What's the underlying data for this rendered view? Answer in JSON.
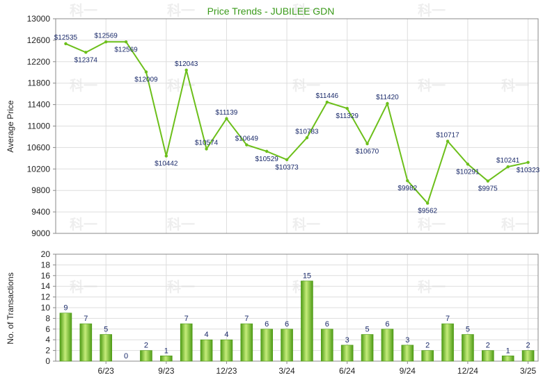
{
  "chart_data": [
    {
      "type": "line",
      "title": "Price Trends - JUBILEE GDN",
      "ylabel": "Average Price",
      "ylim": [
        9000,
        13000
      ],
      "yticks": [
        "9000",
        "9400",
        "9800",
        "10200",
        "10600",
        "11000",
        "11400",
        "11800",
        "12200",
        "12600",
        "13000"
      ],
      "grid": true,
      "series": [
        {
          "values": [
            12535,
            12374,
            12569,
            12569,
            12009,
            10442,
            12043,
            10574,
            11139,
            10649,
            10529,
            10373,
            10783,
            11446,
            11329,
            10670,
            11420,
            9982,
            9562,
            10717,
            10291,
            9975,
            10241,
            10323
          ],
          "labels": [
            "$12535",
            "$12374",
            "$12569",
            "$12569",
            "$12009",
            "$10442",
            "$12043",
            "$10574",
            "$11139",
            "$10649",
            "$10529",
            "$10373",
            "$10783",
            "$11446",
            "$11329",
            "$10670",
            "$11420",
            "$9982",
            "$9562",
            "$10717",
            "$10291",
            "$9975",
            "$10241",
            "$10323"
          ]
        }
      ],
      "colors": {
        "line": "#6cbf1a",
        "grid": "#dddddd",
        "axis": "#888888",
        "title": "#3a9a1a"
      }
    },
    {
      "type": "bar",
      "ylabel": "No. of Transactions",
      "ylim": [
        0,
        20
      ],
      "yticks": [
        "0",
        "2",
        "4",
        "6",
        "8",
        "10",
        "12",
        "14",
        "16",
        "18",
        "20"
      ],
      "xticks": [
        "6/23",
        "9/23",
        "12/23",
        "3/24",
        "6/24",
        "9/24",
        "12/24",
        "3/25"
      ],
      "grid": true,
      "values": [
        9,
        7,
        5,
        0,
        2,
        1,
        7,
        4,
        4,
        7,
        6,
        6,
        15,
        6,
        3,
        5,
        6,
        3,
        2,
        7,
        5,
        2,
        1,
        2
      ],
      "colors": {
        "bar_light": "#c5ec7a",
        "bar_dark": "#4e9b16",
        "grid": "#dddddd",
        "axis": "#888888"
      }
    }
  ],
  "watermark": "科一"
}
